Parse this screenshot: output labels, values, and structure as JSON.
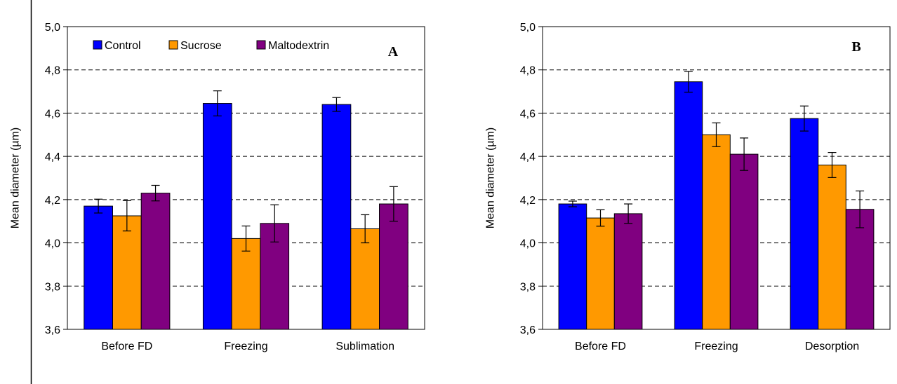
{
  "chart_data": [
    {
      "type": "bar",
      "panel_label": "A",
      "ylabel": "Mean diameter (µm)",
      "xlabel": "",
      "ylim": [
        3.6,
        5.0
      ],
      "y_ticks": [
        "3,6",
        "3,8",
        "4,0",
        "4,2",
        "4,4",
        "4,6",
        "4,8",
        "5,0"
      ],
      "grid": "horizontal dashed",
      "legend": "top-left",
      "categories": [
        "Before FD",
        "Freezing",
        "Sublimation"
      ],
      "series": [
        {
          "name": "Control",
          "color": "#0000FF",
          "values": [
            4.17,
            4.645,
            4.64
          ],
          "errors": [
            0.032,
            0.058,
            0.032
          ]
        },
        {
          "name": "Sucrose",
          "color": "#FF9900",
          "values": [
            4.125,
            4.02,
            4.065
          ],
          "errors": [
            0.07,
            0.058,
            0.065
          ]
        },
        {
          "name": "Maltodextrin",
          "color": "#800080",
          "values": [
            4.23,
            4.09,
            4.18
          ],
          "errors": [
            0.036,
            0.086,
            0.08
          ]
        }
      ]
    },
    {
      "type": "bar",
      "panel_label": "B",
      "ylabel": "Mean diameter (µm)",
      "xlabel": "",
      "ylim": [
        3.6,
        5.0
      ],
      "y_ticks": [
        "3,6",
        "3,8",
        "4,0",
        "4,2",
        "4,4",
        "4,6",
        "4,8",
        "5,0"
      ],
      "grid": "horizontal dashed",
      "categories": [
        "Before FD",
        "Freezing",
        "Desorption"
      ],
      "series": [
        {
          "name": "Control",
          "color": "#0000FF",
          "values": [
            4.18,
            4.745,
            4.575
          ],
          "errors": [
            0.013,
            0.048,
            0.058
          ]
        },
        {
          "name": "Sucrose",
          "color": "#FF9900",
          "values": [
            4.115,
            4.5,
            4.36
          ],
          "errors": [
            0.038,
            0.055,
            0.058
          ]
        },
        {
          "name": "Maltodextrin",
          "color": "#800080",
          "values": [
            4.135,
            4.41,
            4.155
          ],
          "errors": [
            0.045,
            0.075,
            0.085
          ]
        }
      ]
    }
  ]
}
